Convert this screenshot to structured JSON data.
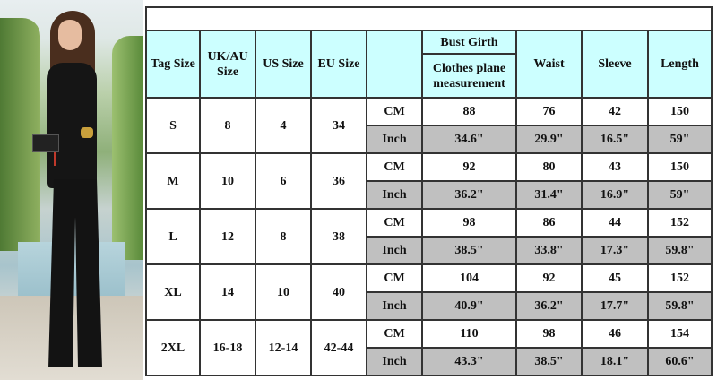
{
  "headers": {
    "tag_size": "Tag Size",
    "uk_au_size": "UK/AU Size",
    "us_size": "US Size",
    "eu_size": "EU Size",
    "unit": "",
    "bust_girth": "Bust Girth",
    "bust_note": "Clothes plane measurement",
    "waist": "Waist",
    "sleeve": "Sleeve",
    "length": "Length"
  },
  "colors": {
    "header_bg": "#ccffff",
    "inch_row_bg": "#c0c0c0",
    "border": "#333333"
  },
  "sizes": [
    {
      "tag": "S",
      "uk_au": "8",
      "us": "4",
      "eu": "34",
      "cm": {
        "unit": "CM",
        "bust": "88",
        "waist": "76",
        "sleeve": "42",
        "length": "150"
      },
      "inch": {
        "unit": "Inch",
        "bust": "34.6\"",
        "waist": "29.9\"",
        "sleeve": "16.5\"",
        "length": "59\""
      }
    },
    {
      "tag": "M",
      "uk_au": "10",
      "us": "6",
      "eu": "36",
      "cm": {
        "unit": "CM",
        "bust": "92",
        "waist": "80",
        "sleeve": "43",
        "length": "150"
      },
      "inch": {
        "unit": "Inch",
        "bust": "36.2\"",
        "waist": "31.4\"",
        "sleeve": "16.9\"",
        "length": "59\""
      }
    },
    {
      "tag": "L",
      "uk_au": "12",
      "us": "8",
      "eu": "38",
      "cm": {
        "unit": "CM",
        "bust": "98",
        "waist": "86",
        "sleeve": "44",
        "length": "152"
      },
      "inch": {
        "unit": "Inch",
        "bust": "38.5\"",
        "waist": "33.8\"",
        "sleeve": "17.3\"",
        "length": "59.8\""
      }
    },
    {
      "tag": "XL",
      "uk_au": "14",
      "us": "10",
      "eu": "40",
      "cm": {
        "unit": "CM",
        "bust": "104",
        "waist": "92",
        "sleeve": "45",
        "length": "152"
      },
      "inch": {
        "unit": "Inch",
        "bust": "40.9\"",
        "waist": "36.2\"",
        "sleeve": "17.7\"",
        "length": "59.8\""
      }
    },
    {
      "tag": "2XL",
      "uk_au": "16-18",
      "us": "12-14",
      "eu": "42-44",
      "cm": {
        "unit": "CM",
        "bust": "110",
        "waist": "98",
        "sleeve": "46",
        "length": "154"
      },
      "inch": {
        "unit": "Inch",
        "bust": "43.3\"",
        "waist": "38.5\"",
        "sleeve": "18.1\"",
        "length": "60.6\""
      }
    }
  ]
}
